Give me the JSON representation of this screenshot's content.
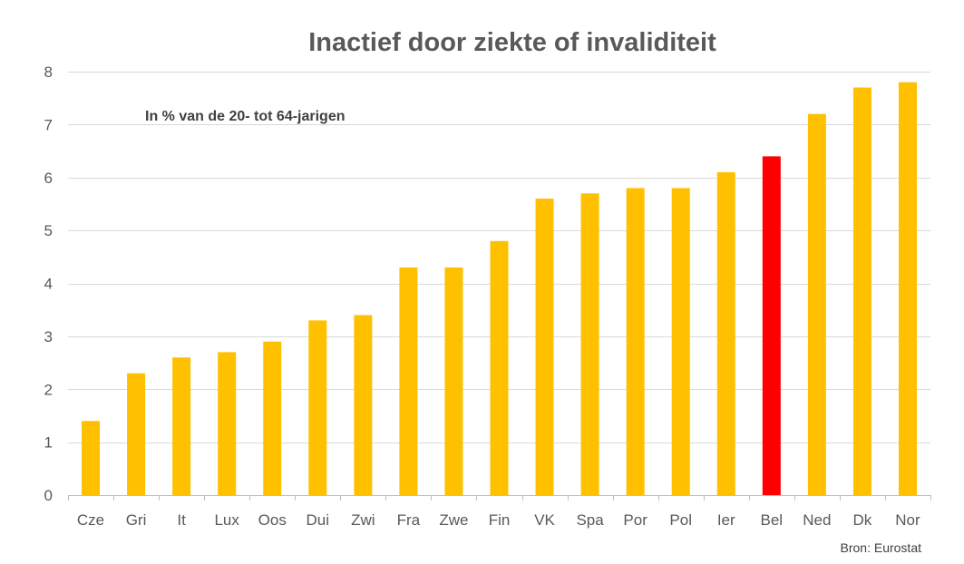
{
  "chart_data": {
    "type": "bar",
    "title": "Inactief door ziekte of invaliditeit",
    "subtitle": "In % van de 20- tot 64-jarigen",
    "source": "Bron: Eurostat",
    "categories": [
      "Cze",
      "Gri",
      "It",
      "Lux",
      "Oos",
      "Dui",
      "Zwi",
      "Fra",
      "Zwe",
      "Fin",
      "VK",
      "Spa",
      "Por",
      "Pol",
      "Ier",
      "Bel",
      "Ned",
      "Dk",
      "Nor"
    ],
    "values": [
      1.4,
      2.3,
      2.6,
      2.7,
      2.9,
      3.3,
      3.4,
      4.3,
      4.3,
      4.8,
      5.6,
      5.7,
      5.8,
      5.8,
      6.1,
      6.4,
      7.2,
      7.7,
      7.8
    ],
    "highlight": "Bel",
    "ylim": [
      0,
      8
    ],
    "yticks": [
      0,
      1,
      2,
      3,
      4,
      5,
      6,
      7,
      8
    ],
    "grid": true,
    "legend": "none",
    "colors": {
      "bar": "#FFC000",
      "highlight": "#FF0000"
    }
  }
}
